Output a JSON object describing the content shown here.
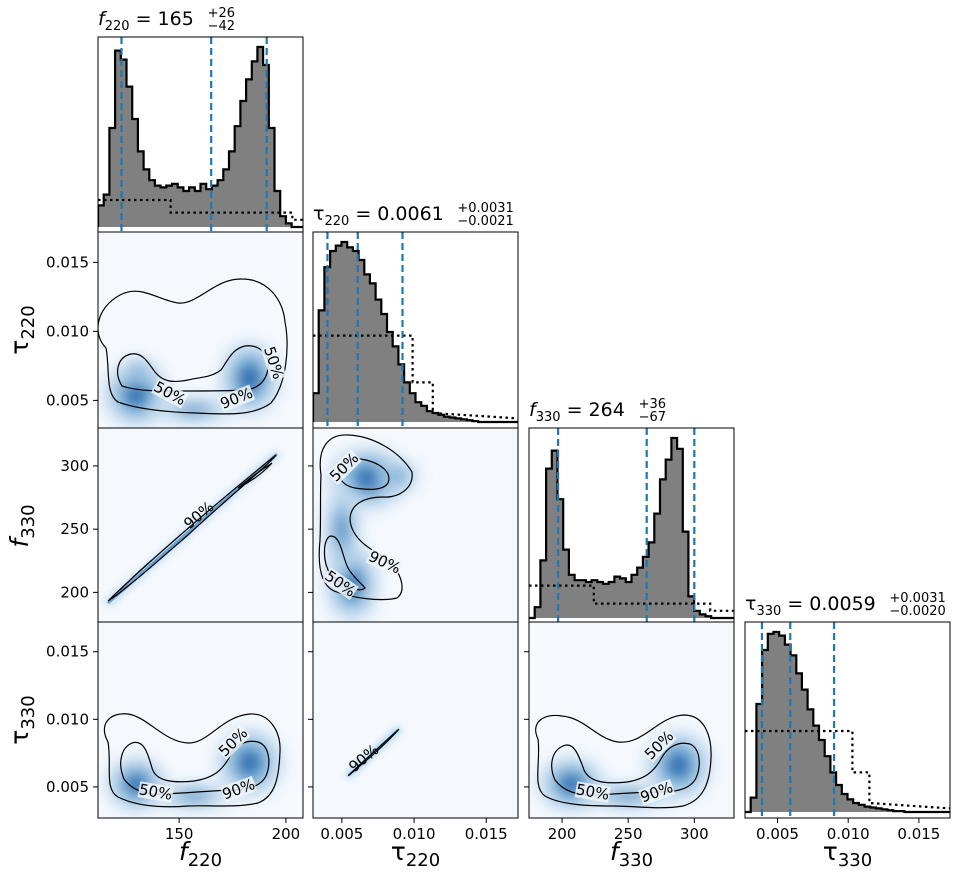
{
  "chart_data": {
    "type": "corner",
    "parameters": [
      {
        "symbol": "f",
        "subscript": "220",
        "median": "165",
        "plus": "+26",
        "minus": "−42"
      },
      {
        "symbol": "τ",
        "subscript": "220",
        "median": "0.0061",
        "plus": "+0.0031",
        "minus": "−0.0021"
      },
      {
        "symbol": "f",
        "subscript": "330",
        "median": "264",
        "plus": "+36",
        "minus": "−67"
      },
      {
        "symbol": "τ",
        "subscript": "330",
        "median": "0.0059",
        "plus": "+0.0031",
        "minus": "−0.0020"
      }
    ],
    "ranges": [
      [
        112,
        208
      ],
      [
        0.003,
        0.0172
      ],
      [
        175,
        330
      ],
      [
        0.0027,
        0.0172
      ]
    ],
    "ticks": [
      {
        "values": [
          150,
          200
        ],
        "labels": [
          "150",
          "200"
        ]
      },
      {
        "values": [
          0.005,
          0.01,
          0.015
        ],
        "labels": [
          "0.005",
          "0.010",
          "0.015"
        ]
      },
      {
        "values": [
          200,
          250,
          300
        ],
        "labels": [
          "200",
          "250",
          "300"
        ]
      },
      {
        "values": [
          0.005,
          0.01,
          0.015
        ],
        "labels": [
          "0.005",
          "0.010",
          "0.015"
        ]
      }
    ],
    "quantile_lines": [
      [
        123,
        165,
        191
      ],
      [
        0.004,
        0.0061,
        0.0092
      ],
      [
        197,
        264,
        300
      ],
      [
        0.0039,
        0.0059,
        0.009
      ]
    ],
    "contour_labels": [
      "50%",
      "90%"
    ],
    "histograms": [
      {
        "heights": [
          0.12,
          0.18,
          0.55,
          0.98,
          0.93,
          0.78,
          0.6,
          0.42,
          0.32,
          0.26,
          0.23,
          0.22,
          0.23,
          0.24,
          0.22,
          0.2,
          0.22,
          0.2,
          0.24,
          0.21,
          0.23,
          0.26,
          0.32,
          0.42,
          0.56,
          0.7,
          0.82,
          0.92,
          1.0,
          0.9,
          0.55,
          0.2,
          0.06,
          0.02,
          0.0,
          0.0
        ],
        "prior": [
          [
            112,
            0.15
          ],
          [
            146,
            0.15
          ],
          [
            146,
            0.08
          ],
          [
            203,
            0.08
          ],
          [
            203,
            0.04
          ],
          [
            208,
            0.04
          ]
        ]
      },
      {
        "heights": [
          0.16,
          0.62,
          0.86,
          0.95,
          0.98,
          1.0,
          0.97,
          0.95,
          0.9,
          0.82,
          0.77,
          0.68,
          0.6,
          0.5,
          0.42,
          0.32,
          0.22,
          0.16,
          0.11,
          0.09,
          0.06,
          0.05,
          0.04,
          0.03,
          0.025,
          0.02,
          0.015,
          0.01,
          0.005,
          0.0,
          0.0,
          0.0,
          0.0,
          0.0,
          0.0,
          0.0
        ],
        "prior": [
          [
            0.003,
            0.48
          ],
          [
            0.0099,
            0.48
          ],
          [
            0.0099,
            0.22
          ],
          [
            0.0113,
            0.22
          ],
          [
            0.0113,
            0.05
          ],
          [
            0.0172,
            0.02
          ]
        ]
      },
      {
        "heights": [
          0.0,
          0.06,
          0.32,
          0.83,
          0.93,
          0.66,
          0.38,
          0.24,
          0.21,
          0.21,
          0.2,
          0.21,
          0.2,
          0.19,
          0.2,
          0.23,
          0.22,
          0.2,
          0.24,
          0.28,
          0.34,
          0.42,
          0.58,
          0.77,
          0.88,
          1.0,
          0.94,
          0.48,
          0.12,
          0.04,
          0.02,
          0.01,
          0.0,
          0.0,
          0.0,
          0.0
        ],
        "prior": [
          [
            175,
            0.18
          ],
          [
            224,
            0.18
          ],
          [
            224,
            0.08
          ],
          [
            312,
            0.08
          ],
          [
            312,
            0.04
          ],
          [
            330,
            0.04
          ]
        ]
      },
      {
        "heights": [
          0.0,
          0.08,
          0.6,
          0.9,
          0.99,
          1.0,
          0.98,
          0.93,
          0.87,
          0.77,
          0.68,
          0.57,
          0.48,
          0.4,
          0.31,
          0.22,
          0.15,
          0.1,
          0.07,
          0.05,
          0.04,
          0.03,
          0.025,
          0.02,
          0.015,
          0.01,
          0.005,
          0.005,
          0.0,
          0.0,
          0.0,
          0.0,
          0.0,
          0.0,
          0.0,
          0.0
        ],
        "prior": [
          [
            0.0027,
            0.45
          ],
          [
            0.0103,
            0.45
          ],
          [
            0.0103,
            0.22
          ],
          [
            0.0115,
            0.22
          ],
          [
            0.0115,
            0.05
          ],
          [
            0.0172,
            0.02
          ]
        ]
      }
    ]
  }
}
